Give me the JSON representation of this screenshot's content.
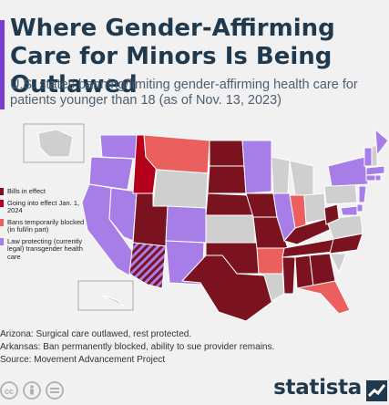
{
  "header": {
    "title": "Where Gender-Affirming Care for Minors Is Being Outlawed",
    "subtitle": "U.S. states banning/limiting gender-affirming health care for patients younger than 18 (as of Nov. 13, 2023)"
  },
  "colors": {
    "accent": "#7a3fd1",
    "bills_in_effect": "#7b1220",
    "going_into_effect": "#b5001b",
    "bans_temporarily_blocked": "#ec5f5f",
    "law_protecting": "#a77ee8",
    "no_action": "#cfcfcf",
    "hatch": "#7b1220"
  },
  "legend": [
    {
      "label": "Bills in effect",
      "color_key": "bills_in_effect"
    },
    {
      "label": "Going into effect Jan. 1, 2024",
      "color_key": "going_into_effect"
    },
    {
      "label": "Bans temporarily blocked (in full/in part)",
      "color_key": "bans_temporarily_blocked"
    },
    {
      "label": "Law protecting (currently legal) transgender health care",
      "color_key": "law_protecting"
    }
  ],
  "map_data": {
    "bills_in_effect": [
      "ND",
      "SD",
      "NE",
      "OK",
      "IA",
      "MO",
      "TN",
      "KY",
      "WV",
      "MS",
      "AL",
      "GA",
      "NC",
      "UT",
      "TX",
      "AZ"
    ],
    "going_into_effect": [
      "ID"
    ],
    "bans_temporarily_blocked": [
      "MT",
      "IN",
      "AR",
      "FL"
    ],
    "law_protecting": [
      "WA",
      "OR",
      "CA",
      "NV",
      "CO",
      "NM",
      "MN",
      "IL",
      "NY",
      "VT",
      "ME",
      "MA",
      "CT",
      "RI",
      "NJ",
      "MD",
      "DE"
    ],
    "hatched": [
      "AZ"
    ]
  },
  "notes": [
    "Arizona: Surgical care outlawed, rest protected.",
    "Arkansas: Ban permanently blocked, ability to sue provider remains.",
    "Source: Movement Advancement Project"
  ],
  "footer": {
    "brand": "statista",
    "license_icons": [
      "creative-commons-icon",
      "attribution-icon",
      "no-derivatives-icon"
    ]
  }
}
